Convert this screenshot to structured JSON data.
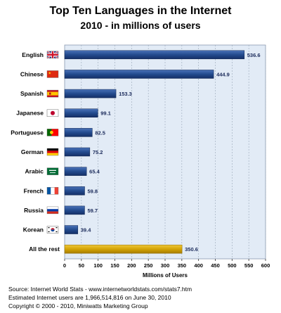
{
  "chart_data": {
    "type": "bar",
    "orientation": "horizontal",
    "title": "Top Ten Languages in the Internet",
    "subtitle": "2010 - in millions of users",
    "xlabel": "Millions of Users",
    "ylabel": "",
    "xlim": [
      0,
      600
    ],
    "xticks": [
      0,
      50,
      100,
      150,
      200,
      250,
      300,
      350,
      400,
      450,
      500,
      550,
      600
    ],
    "grid": true,
    "categories": [
      "English",
      "Chinese",
      "Spanish",
      "Japanese",
      "Portuguese",
      "German",
      "Arabic",
      "French",
      "Russia",
      "Korean",
      "All the rest"
    ],
    "values": [
      536.6,
      444.9,
      153.3,
      99.1,
      82.5,
      75.2,
      65.4,
      59.8,
      59.7,
      39.4,
      350.6
    ],
    "value_labels": [
      "536.6",
      "444.9",
      "153.3",
      "99.1",
      "82.5",
      "75.2",
      "65.4",
      "59.8",
      "59.7",
      "39.4",
      "350.6"
    ],
    "flags": [
      "uk-flag-icon",
      "china-flag-icon",
      "spain-flag-icon",
      "japan-flag-icon",
      "portugal-flag-icon",
      "germany-flag-icon",
      "saudi-arabia-flag-icon",
      "france-flag-icon",
      "russia-flag-icon",
      "korea-flag-icon",
      ""
    ],
    "bar_color": "#234b8e",
    "highlight_bar_color": "#d4a406",
    "plot_background": "#e2ebf6"
  },
  "footer": {
    "source": "Source: Internet World Stats - www.internetworldstats.com/stats7.htm",
    "estimate": "Estimated Internet users are 1,966,514,816 on June 30, 2010",
    "copyright": "Copyright © 2000 - 2010, Miniwatts Marketing Group"
  }
}
